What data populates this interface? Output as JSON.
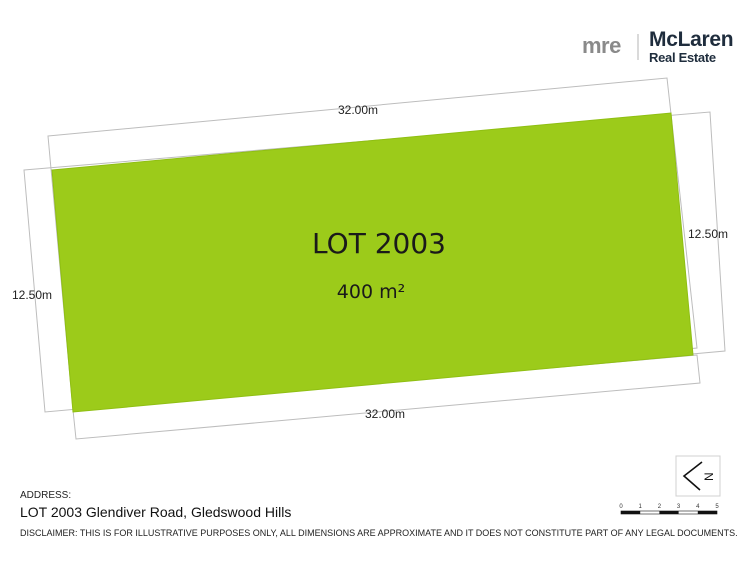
{
  "logo": {
    "mre_text": "mre",
    "brand_name": "McLaren",
    "brand_sub": "Real Estate"
  },
  "lot": {
    "title": "LOT 2003",
    "area": "400 m²",
    "fill_color": "#9ccb1a"
  },
  "dimensions": {
    "top": "32.00m",
    "bottom": "32.00m",
    "left": "12.50m",
    "right": "12.50m"
  },
  "scale_bar": {
    "labels": [
      "0",
      "1",
      "2",
      "3",
      "4",
      "5"
    ]
  },
  "north_arrow": {
    "letter": "N"
  },
  "address": {
    "label": "ADDRESS:",
    "value": "LOT 2003 Glendiver Road, Gledswood Hills"
  },
  "disclaimer": "DISCLAIMER: THIS IS FOR ILLUSTRATIVE PURPOSES ONLY, ALL DIMENSIONS ARE APPROXIMATE AND IT DOES NOT CONSTITUTE PART OF ANY LEGAL DOCUMENTS."
}
